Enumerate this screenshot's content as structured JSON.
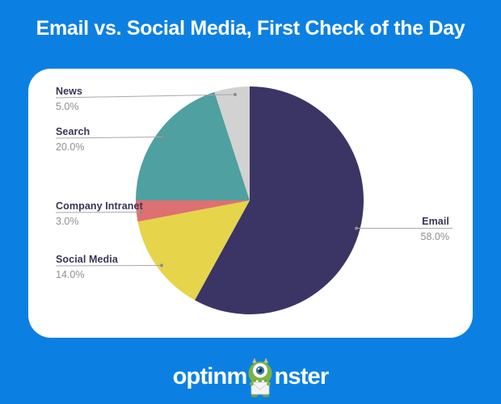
{
  "page": {
    "background_color": "#0C80E2",
    "title": "Email vs. Social Media, First Check of the Day"
  },
  "logo": {
    "full_name": "optinmonster",
    "text_before_mascot": "optinm",
    "text_after_mascot": "nster",
    "text_color": "#FFFFFF",
    "mascot": "green one-eyed monster holding envelope",
    "mascot_green": "#7CB342"
  },
  "chart_data": {
    "type": "pie",
    "title": "Email vs. Social Media, First Check of the Day",
    "start_angle_deg": 0,
    "direction": "clockwise",
    "total": 100,
    "slices": [
      {
        "label": "Email",
        "value": 58.0,
        "percent_label": "58.0%",
        "color": "#3B3565"
      },
      {
        "label": "Social Media",
        "value": 14.0,
        "percent_label": "14.0%",
        "color": "#E6D44B"
      },
      {
        "label": "Company Intranet",
        "value": 3.0,
        "percent_label": "3.0%",
        "color": "#DD7070"
      },
      {
        "label": "Search",
        "value": 20.0,
        "percent_label": "20.0%",
        "color": "#4FA0A0"
      },
      {
        "label": "News",
        "value": 5.0,
        "percent_label": "5.0%",
        "color": "#D2D2D2"
      }
    ],
    "legend_position": "callouts-with-leader-lines",
    "callout_name_color": "#3A3456",
    "callout_percent_color": "#8F8F8F",
    "leader_line_color": "#A8A8A8",
    "leader_dot_color": "#8C8C8C"
  }
}
